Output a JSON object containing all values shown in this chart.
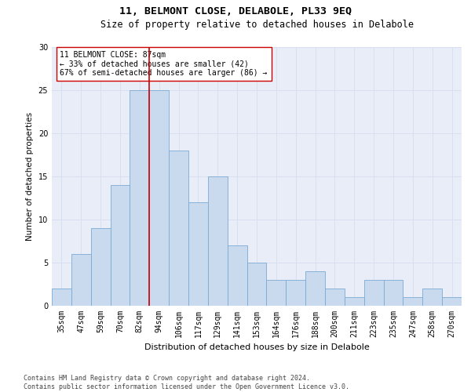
{
  "title": "11, BELMONT CLOSE, DELABOLE, PL33 9EQ",
  "subtitle": "Size of property relative to detached houses in Delabole",
  "xlabel": "Distribution of detached houses by size in Delabole",
  "ylabel": "Number of detached properties",
  "categories": [
    "35sqm",
    "47sqm",
    "59sqm",
    "70sqm",
    "82sqm",
    "94sqm",
    "106sqm",
    "117sqm",
    "129sqm",
    "141sqm",
    "153sqm",
    "164sqm",
    "176sqm",
    "188sqm",
    "200sqm",
    "211sqm",
    "223sqm",
    "235sqm",
    "247sqm",
    "258sqm",
    "270sqm"
  ],
  "values": [
    2,
    6,
    9,
    14,
    25,
    25,
    18,
    12,
    15,
    7,
    5,
    3,
    3,
    4,
    2,
    1,
    3,
    3,
    1,
    2,
    1
  ],
  "bar_color": "#c9d9ee",
  "bar_edge_color": "#7aaad4",
  "vline_x_index": 4.5,
  "vline_color": "#cc0000",
  "annotation_text": "11 BELMONT CLOSE: 87sqm\n← 33% of detached houses are smaller (42)\n67% of semi-detached houses are larger (86) →",
  "annotation_box_color": "#ffffff",
  "annotation_box_edge_color": "#cc0000",
  "ylim": [
    0,
    30
  ],
  "yticks": [
    0,
    5,
    10,
    15,
    20,
    25,
    30
  ],
  "grid_color": "#d8dff0",
  "background_color": "#e8edf8",
  "footer_text": "Contains HM Land Registry data © Crown copyright and database right 2024.\nContains public sector information licensed under the Open Government Licence v3.0.",
  "title_fontsize": 9.5,
  "subtitle_fontsize": 8.5,
  "xlabel_fontsize": 8,
  "ylabel_fontsize": 7.5,
  "tick_fontsize": 7,
  "annotation_fontsize": 7,
  "footer_fontsize": 6
}
